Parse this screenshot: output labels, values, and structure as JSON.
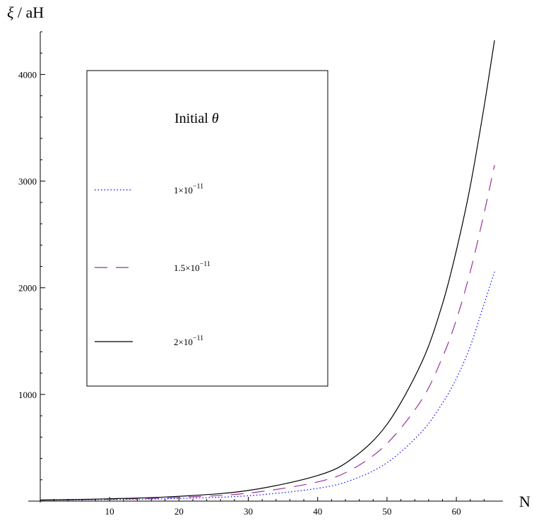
{
  "chart_data": {
    "type": "line",
    "ylabel_symbol": "ξ",
    "ylabel_rest": " / aH",
    "xlabel": "N",
    "xlim": [
      0,
      66
    ],
    "ylim": [
      0,
      4400
    ],
    "xticks": [
      10,
      20,
      30,
      40,
      50,
      60
    ],
    "yticks": [
      1000,
      2000,
      3000,
      4000
    ],
    "grid": false,
    "legend": {
      "title_text": "Initial ",
      "title_symbol": "θ",
      "placement": "top-left"
    },
    "series": [
      {
        "name": "1×10⁻¹¹",
        "name_base": "1×10",
        "name_exp": "−11",
        "color": "#0000ff",
        "dash": "dotted",
        "x": [
          0,
          10,
          20,
          30,
          40,
          45,
          50,
          55,
          58,
          60,
          62,
          64,
          65.5
        ],
        "y": [
          10,
          15,
          25,
          50,
          120,
          200,
          360,
          650,
          920,
          1150,
          1450,
          1850,
          2150
        ]
      },
      {
        "name": "1.5×10⁻¹¹",
        "name_base": "1.5×10",
        "name_exp": "−11",
        "color": "#993399",
        "dash": "dashed",
        "x": [
          0,
          10,
          20,
          30,
          40,
          45,
          50,
          55,
          58,
          60,
          62,
          64,
          65.5
        ],
        "y": [
          10,
          18,
          35,
          75,
          180,
          300,
          540,
          950,
          1350,
          1700,
          2150,
          2700,
          3150
        ]
      },
      {
        "name": "2×10⁻¹¹",
        "name_base": "2×10",
        "name_exp": "−11",
        "color": "#000000",
        "dash": "solid",
        "x": [
          0,
          10,
          20,
          30,
          40,
          45,
          50,
          55,
          58,
          60,
          62,
          64,
          65.5
        ],
        "y": [
          10,
          22,
          45,
          100,
          240,
          400,
          720,
          1300,
          1850,
          2350,
          2950,
          3700,
          4320
        ]
      }
    ]
  }
}
